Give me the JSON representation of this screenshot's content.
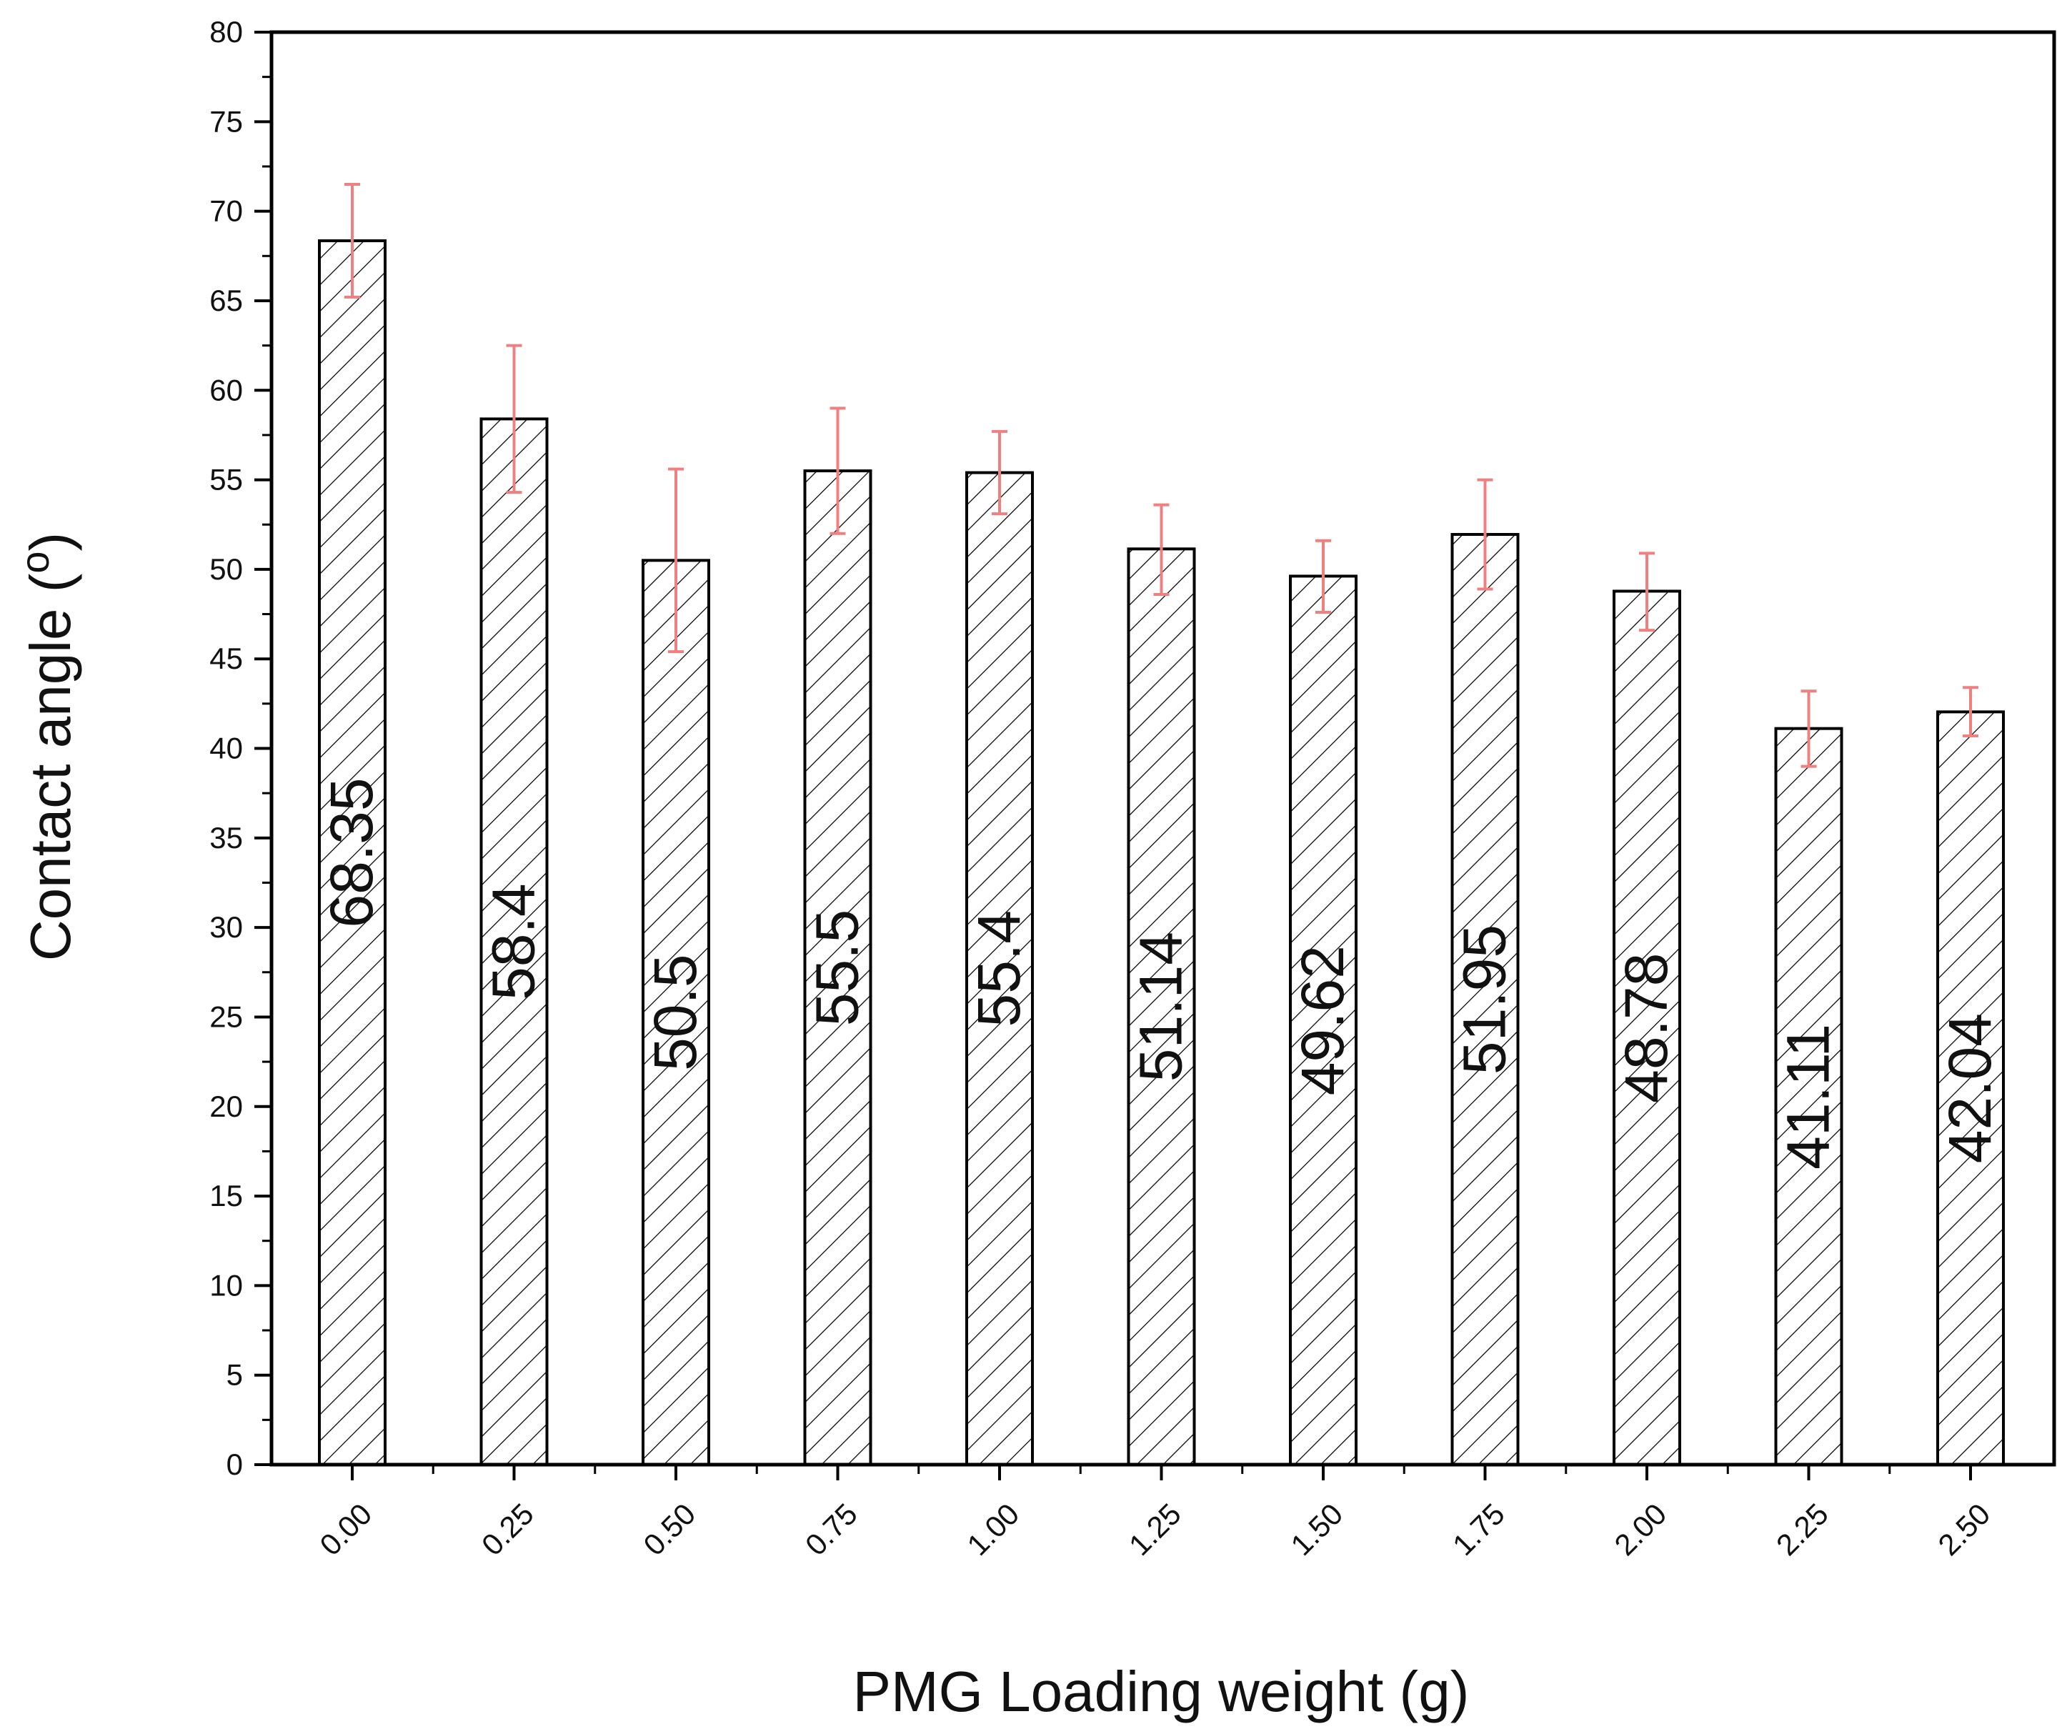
{
  "chart_data": {
    "type": "bar",
    "title": "",
    "xlabel": "PMG Loading weight (g)",
    "ylabel_main": "Contact angle (",
    "ylabel_sup": "o",
    "ylabel_close": ")",
    "categories": [
      "0.00",
      "0.25",
      "0.50",
      "0.75",
      "1.00",
      "1.25",
      "1.50",
      "1.75",
      "2.00",
      "2.25",
      "2.50"
    ],
    "values": [
      68.35,
      58.4,
      50.5,
      55.5,
      55.4,
      51.14,
      49.62,
      51.95,
      48.78,
      41.11,
      42.04
    ],
    "value_labels": [
      "68.35",
      "58.4",
      "50.5",
      "55.5",
      "55.4",
      "51.14",
      "49.62",
      "51.95",
      "48.78",
      "41.11",
      "42.04"
    ],
    "error_upper": [
      71.5,
      62.5,
      55.6,
      59.0,
      57.7,
      53.6,
      51.6,
      55.0,
      50.9,
      43.2,
      43.4
    ],
    "error_lower": [
      65.2,
      54.3,
      45.4,
      52.0,
      53.1,
      48.6,
      47.6,
      48.9,
      46.6,
      39.0,
      40.7
    ],
    "ylim": [
      0,
      80
    ],
    "yticks": [
      "0",
      "5",
      "10",
      "15",
      "20",
      "25",
      "30",
      "35",
      "40",
      "45",
      "50",
      "55",
      "60",
      "65",
      "70",
      "75",
      "80"
    ],
    "bar_fill": "hatched",
    "error_color": "#f08080",
    "bar_stroke": "#000000"
  }
}
